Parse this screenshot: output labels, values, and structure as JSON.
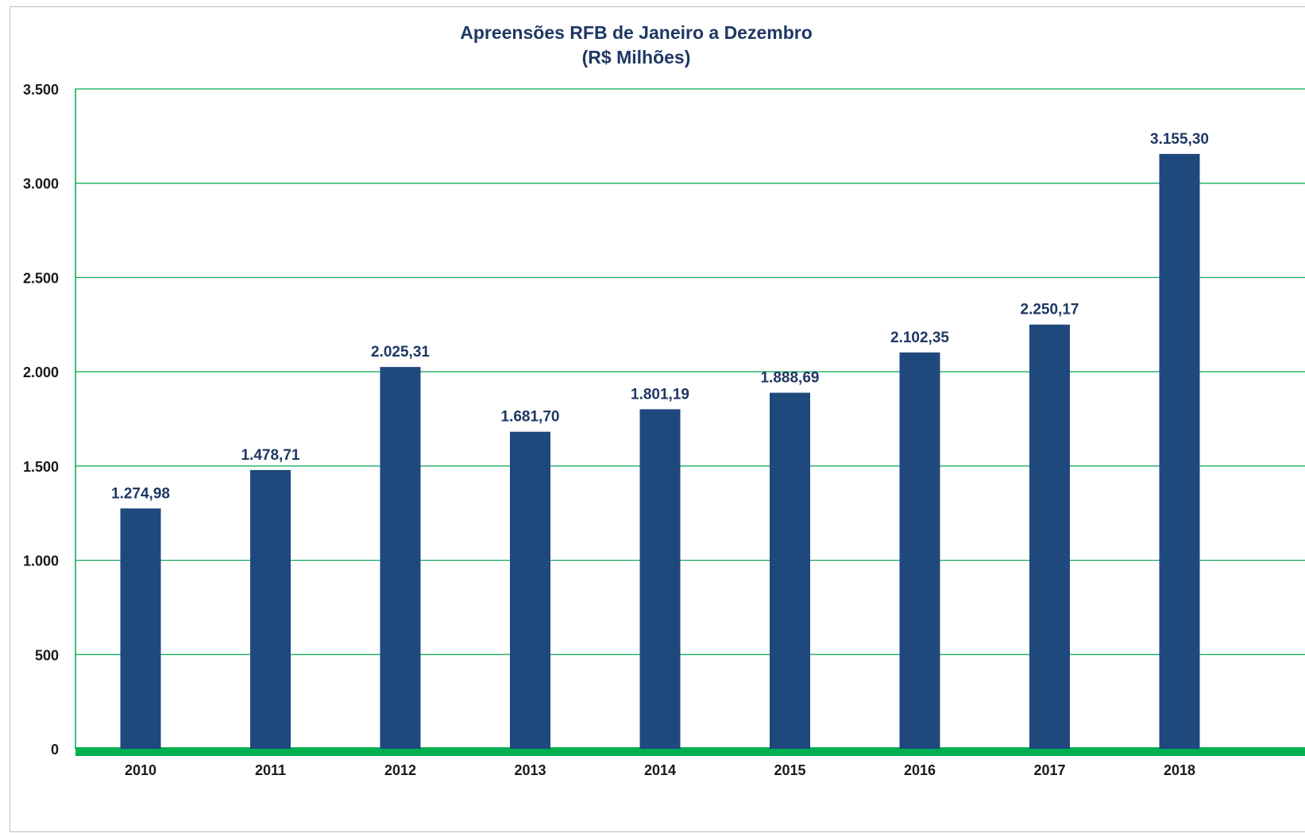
{
  "chart_data": {
    "type": "bar",
    "title": "Apreensões RFB de Janeiro a Dezembro",
    "subtitle": "(R$ Milhões)",
    "xlabel": "",
    "ylabel": "",
    "categories": [
      "2010",
      "2011",
      "2012",
      "2013",
      "2014",
      "2015",
      "2016",
      "2017",
      "2018"
    ],
    "values": [
      1274.98,
      1478.71,
      2025.31,
      1681.7,
      1801.19,
      1888.69,
      2102.35,
      2250.17,
      3155.3
    ],
    "data_labels": [
      "1.274,98",
      "1.478,71",
      "2.025,31",
      "1.681,70",
      "1.801,19",
      "1.888,69",
      "2.102,35",
      "2.250,17",
      "3.155,30"
    ],
    "ylim": [
      0,
      3500
    ],
    "yticks": [
      0,
      500,
      1000,
      1500,
      2000,
      2500,
      3000,
      3500
    ],
    "ytick_labels": [
      "0",
      "500",
      "1.000",
      "1.500",
      "2.000",
      "2.500",
      "3.000",
      "3.500"
    ],
    "grid": true,
    "legend": "none",
    "colors": {
      "bar": "#1f497d",
      "grid": "#00a651",
      "baseline": "#00b050",
      "title": "#1f3864",
      "data_label": "#1f3864",
      "tick_label": "#1a1a1a"
    }
  }
}
